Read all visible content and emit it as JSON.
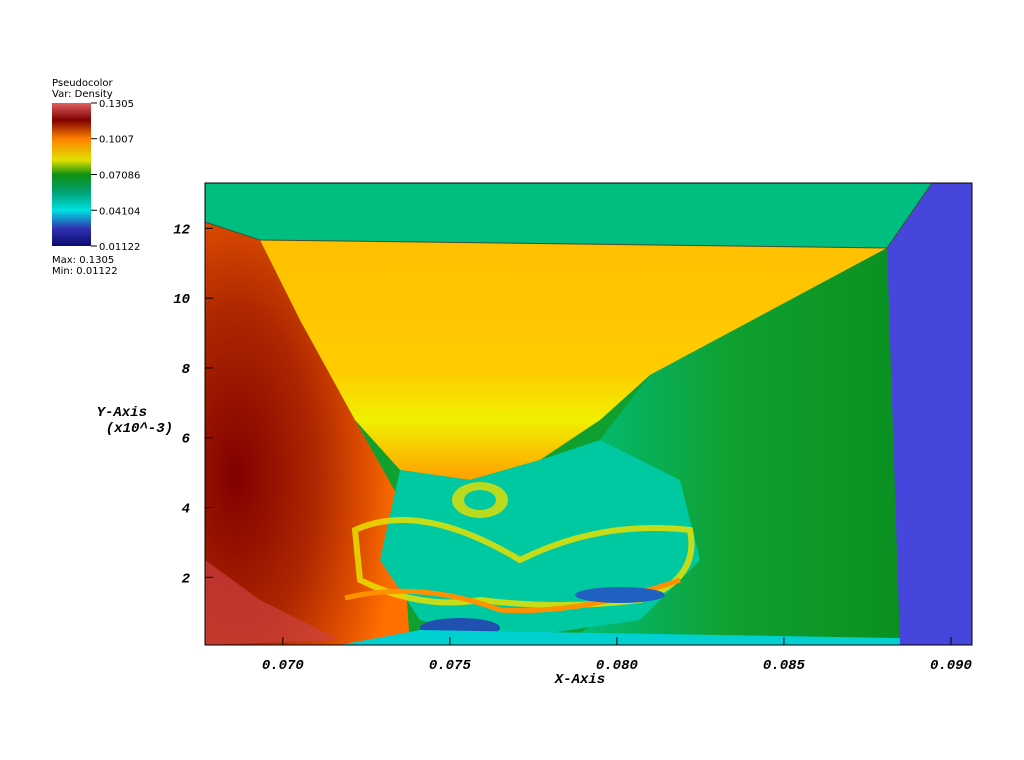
{
  "chart_data": {
    "type": "pseudocolor",
    "legend": {
      "plot_name": "Pseudocolor",
      "variable": "Var: Density",
      "ticks": [
        0.1305,
        0.1007,
        0.07086,
        0.04104,
        0.01122
      ],
      "range": [
        0.01122,
        0.1305
      ],
      "max": {
        "value": 0.1305,
        "label": "Max: 0.1305"
      },
      "min": {
        "value": 0.01122,
        "label": "Min: 0.01122"
      }
    },
    "x_label": "X-Axis",
    "y_label": "Y-Axis",
    "y_unit": "(x10^-3)",
    "xlim": [
      0.06767,
      0.09063
    ],
    "xticks": [
      {
        "value": 0.07,
        "label": "0.070"
      },
      {
        "value": 0.075,
        "label": "0.075"
      },
      {
        "value": 0.08,
        "label": "0.080"
      },
      {
        "value": 0.085,
        "label": "0.085"
      },
      {
        "value": 0.09,
        "label": "0.090"
      }
    ],
    "ylim": [
      0.06,
      13.3
    ],
    "yticks": [
      2,
      4,
      6,
      8,
      10,
      12
    ]
  }
}
